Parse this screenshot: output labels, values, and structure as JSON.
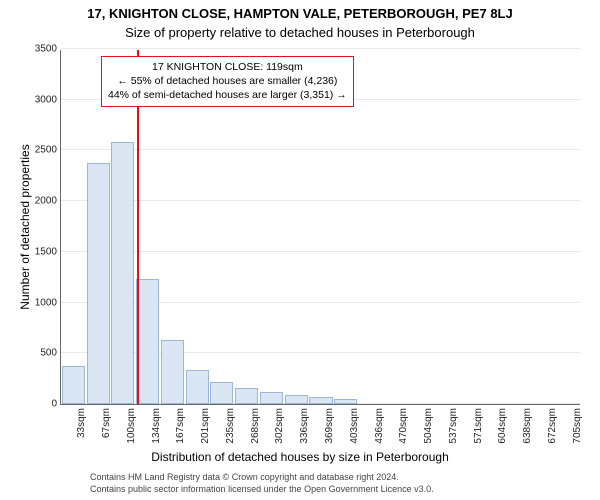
{
  "titles": {
    "line1": "17, KNIGHTON CLOSE, HAMPTON VALE, PETERBOROUGH, PE7 8LJ",
    "line2": "Size of property relative to detached houses in Peterborough"
  },
  "chart": {
    "type": "histogram",
    "ylabel": "Number of detached properties",
    "xlabel": "Distribution of detached houses by size in Peterborough",
    "ylim": [
      0,
      3500
    ],
    "ytick_step": 500,
    "yticks": [
      0,
      500,
      1000,
      1500,
      2000,
      2500,
      3000,
      3500
    ],
    "grid_color": "#e8e8e8",
    "axis_color": "#666666",
    "bar_fill": "#dbe6f4",
    "bar_border": "#9bb7d6",
    "bar_width_ratio": 0.93,
    "categories": [
      "33sqm",
      "67sqm",
      "100sqm",
      "134sqm",
      "167sqm",
      "201sqm",
      "235sqm",
      "268sqm",
      "302sqm",
      "336sqm",
      "369sqm",
      "403sqm",
      "436sqm",
      "470sqm",
      "504sqm",
      "537sqm",
      "571sqm",
      "604sqm",
      "638sqm",
      "672sqm",
      "705sqm"
    ],
    "values": [
      370,
      2380,
      2580,
      1230,
      630,
      340,
      220,
      160,
      120,
      90,
      70,
      50,
      0,
      0,
      0,
      0,
      0,
      0,
      0,
      0,
      0
    ],
    "marker": {
      "position_value": 119,
      "x_min": 33,
      "x_bin": 33.6,
      "line_color": "#e11313"
    },
    "annotation": {
      "line1": "17 KNIGHTON CLOSE: 119sqm",
      "line2": "← 55% of detached houses are smaller (4,236)",
      "line3": "44% of semi-detached houses are larger (3,351) →",
      "border_color": "#e11313"
    }
  },
  "footnotes": {
    "line1": "Contains HM Land Registry data © Crown copyright and database right 2024.",
    "line2": "Contains public sector information licensed under the Open Government Licence v3.0."
  }
}
